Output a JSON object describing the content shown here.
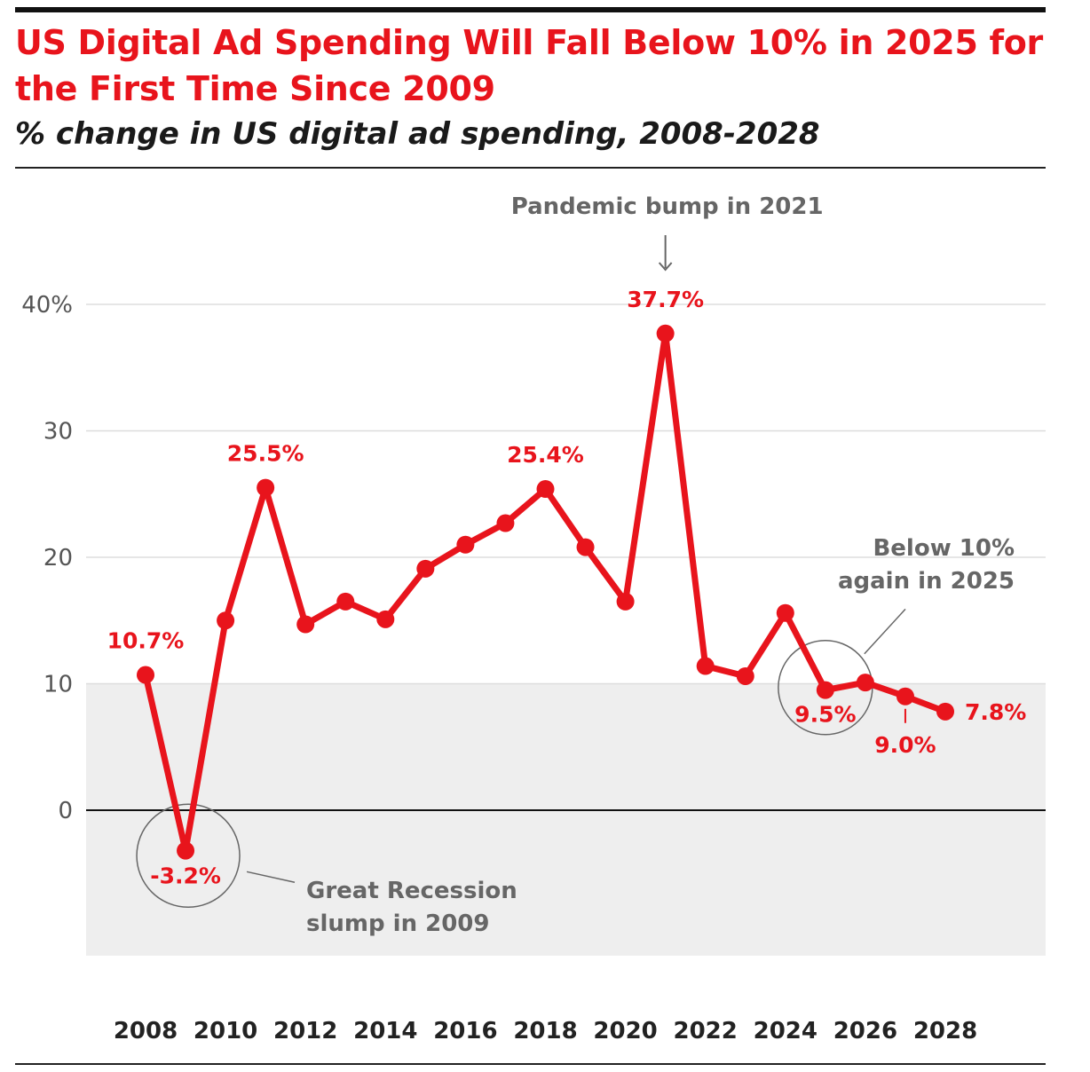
{
  "header": {
    "title": "US Digital Ad Spending Will Fall Below 10% in 2025 for the First Time Since 2009",
    "subtitle": "% change in US digital ad spending, 2008-2028"
  },
  "colors": {
    "accent": "#e8141c",
    "shade": "#eeeeee",
    "grid": "#dddddd",
    "annotation": "#666666"
  },
  "chart_data": {
    "type": "line",
    "title": "US Digital Ad Spending Will Fall Below 10% in 2025 for the First Time Since 2009",
    "subtitle": "% change in US digital ad spending, 2008-2028",
    "x": [
      2008,
      2009,
      2010,
      2011,
      2012,
      2013,
      2014,
      2015,
      2016,
      2017,
      2018,
      2019,
      2020,
      2021,
      2022,
      2023,
      2024,
      2025,
      2026,
      2027,
      2028
    ],
    "series": [
      {
        "values": [
          10.7,
          -3.2,
          15.0,
          25.5,
          14.7,
          16.5,
          15.1,
          19.1,
          21.0,
          22.7,
          25.4,
          20.8,
          16.5,
          37.7,
          11.4,
          10.6,
          15.6,
          9.5,
          10.1,
          9.0,
          7.8
        ]
      }
    ],
    "ylim": [
      -11.5,
      40
    ],
    "y_ticks": [
      {
        "value": 40,
        "label": "40%"
      },
      {
        "value": 30,
        "label": "30"
      },
      {
        "value": 20,
        "label": "20"
      },
      {
        "value": 10,
        "label": "10"
      },
      {
        "value": 0,
        "label": "0"
      }
    ],
    "x_ticks": [
      "2008",
      "2010",
      "2012",
      "2014",
      "2016",
      "2018",
      "2020",
      "2022",
      "2024",
      "2026",
      "2028"
    ],
    "grid": true,
    "shaded_band_below": 10,
    "data_labels": [
      {
        "year": 2008,
        "text": "10.7%"
      },
      {
        "year": 2009,
        "text": "-3.2%"
      },
      {
        "year": 2011,
        "text": "25.5%"
      },
      {
        "year": 2018,
        "text": "25.4%"
      },
      {
        "year": 2021,
        "text": "37.7%"
      },
      {
        "year": 2025,
        "text": "9.5%"
      },
      {
        "year": 2027,
        "text": "9.0%"
      },
      {
        "year": 2028,
        "text": "7.8%"
      }
    ],
    "annotations": [
      {
        "year": 2021,
        "lines": [
          "Pandemic bump in 2021"
        ]
      },
      {
        "year": 2009,
        "lines": [
          "Great Recession",
          "slump in 2009"
        ]
      },
      {
        "year": 2025,
        "lines": [
          "Below 10%",
          "again in 2025"
        ]
      }
    ]
  }
}
